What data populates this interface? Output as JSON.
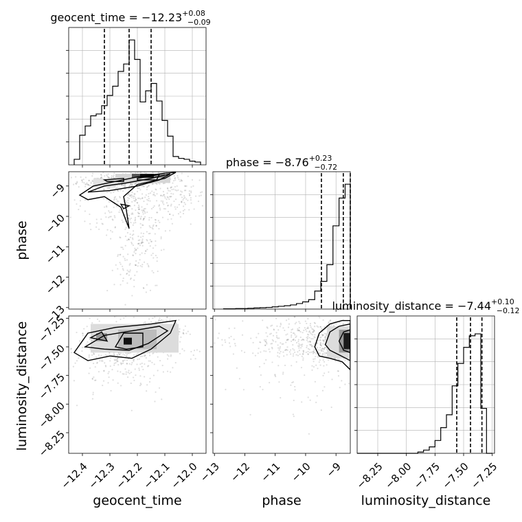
{
  "chart_data": [
    {
      "type": "histogram",
      "panel": "geocent_time-marginal",
      "title_param": "geocent_time",
      "title_value": "−12.23",
      "title_upper": "+0.08",
      "title_lower": "−0.09",
      "xlim": [
        -12.45,
        -11.95
      ],
      "quantiles": [
        -12.32,
        -12.23,
        -12.15
      ],
      "bin_edges": [
        -12.43,
        -12.41,
        -12.39,
        -12.37,
        -12.35,
        -12.33,
        -12.31,
        -12.29,
        -12.27,
        -12.25,
        -12.23,
        -12.21,
        -12.19,
        -12.17,
        -12.15,
        -12.13,
        -12.11,
        -12.09,
        -12.07,
        -12.05,
        -12.03,
        -12.01,
        -11.99,
        -11.97
      ],
      "counts": [
        0.6,
        3.2,
        4.2,
        5.3,
        5.5,
        6.4,
        7.5,
        8.5,
        10.1,
        10.9,
        13.5,
        11.4,
        6.8,
        8.0,
        8.8,
        6.9,
        4.8,
        3.1,
        0.9,
        0.7,
        0.6,
        0.4,
        0.3
      ]
    },
    {
      "type": "histogram",
      "panel": "phase-marginal",
      "title_param": "phase",
      "title_value": "−8.76",
      "title_upper": "+0.23",
      "title_lower": "−0.72",
      "xlim": [
        -13.05,
        -8.53
      ],
      "quantiles": [
        -9.48,
        -8.76,
        -8.53
      ],
      "bin_edges": [
        -12.7,
        -12.5,
        -12.3,
        -12.1,
        -11.9,
        -11.7,
        -11.5,
        -11.3,
        -11.1,
        -10.9,
        -10.7,
        -10.5,
        -10.3,
        -10.1,
        -9.9,
        -9.7,
        -9.5,
        -9.3,
        -9.1,
        -8.9,
        -8.7,
        -8.53
      ],
      "counts": [
        0.1,
        0.1,
        0.2,
        0.2,
        0.3,
        0.4,
        0.5,
        0.6,
        0.8,
        1.0,
        1.2,
        1.5,
        2.0,
        2.6,
        3.4,
        6.5,
        10.0,
        16.0,
        30.0,
        40.0,
        45.0
      ]
    },
    {
      "type": "histogram",
      "panel": "luminosity_distance-marginal",
      "title_param": "luminosity_distance",
      "title_value": "−7.44",
      "title_upper": "+0.10",
      "title_lower": "−0.12",
      "xlim": [
        -8.43,
        -7.23
      ],
      "quantiles": [
        -7.56,
        -7.44,
        -7.34
      ],
      "bin_edges": [
        -8.43,
        -7.9,
        -7.85,
        -7.8,
        -7.75,
        -7.7,
        -7.65,
        -7.6,
        -7.55,
        -7.5,
        -7.45,
        -7.4,
        -7.35,
        -7.3,
        -7.25
      ],
      "counts": [
        0.0,
        0.2,
        0.5,
        1.0,
        2.0,
        4.0,
        6.0,
        10.5,
        14.0,
        16.5,
        18.3,
        18.6,
        7.0,
        0.0
      ]
    },
    {
      "type": "scatter",
      "panel": "phase-vs-geocent_time",
      "xlim": [
        -12.45,
        -11.95
      ],
      "ylim": [
        -13.05,
        -8.53
      ]
    },
    {
      "type": "scatter",
      "panel": "luminosity_distance-vs-geocent_time",
      "xlim": [
        -12.45,
        -11.95
      ],
      "ylim": [
        -8.43,
        -7.23
      ]
    },
    {
      "type": "scatter",
      "panel": "luminosity_distance-vs-phase",
      "xlim": [
        -13.05,
        -8.53
      ],
      "ylim": [
        -8.43,
        -7.23
      ]
    }
  ],
  "axes": {
    "geocent_time": {
      "label": "geocent_time",
      "ticks": [
        -12.4,
        -12.3,
        -12.2,
        -12.1,
        -12.0
      ],
      "tick_labels": [
        "−12.4",
        "−12.3",
        "−12.2",
        "−12.1",
        "−12.0"
      ]
    },
    "phase": {
      "label": "phase",
      "ticks": [
        -13,
        -12,
        -11,
        -10,
        -9
      ],
      "tick_labels": [
        "−13",
        "−12",
        "−11",
        "−10",
        "−9"
      ]
    },
    "luminosity_distance": {
      "label": "luminosity_distance",
      "ticks": [
        -8.25,
        -8.0,
        -7.75,
        -7.5,
        -7.25
      ],
      "tick_labels": [
        "−8.25",
        "−8.00",
        "−7.75",
        "−7.50",
        "−7.25"
      ]
    }
  },
  "colors": {
    "line": "#000000",
    "grid": "#b0b0b0",
    "scatter": "#000000"
  }
}
